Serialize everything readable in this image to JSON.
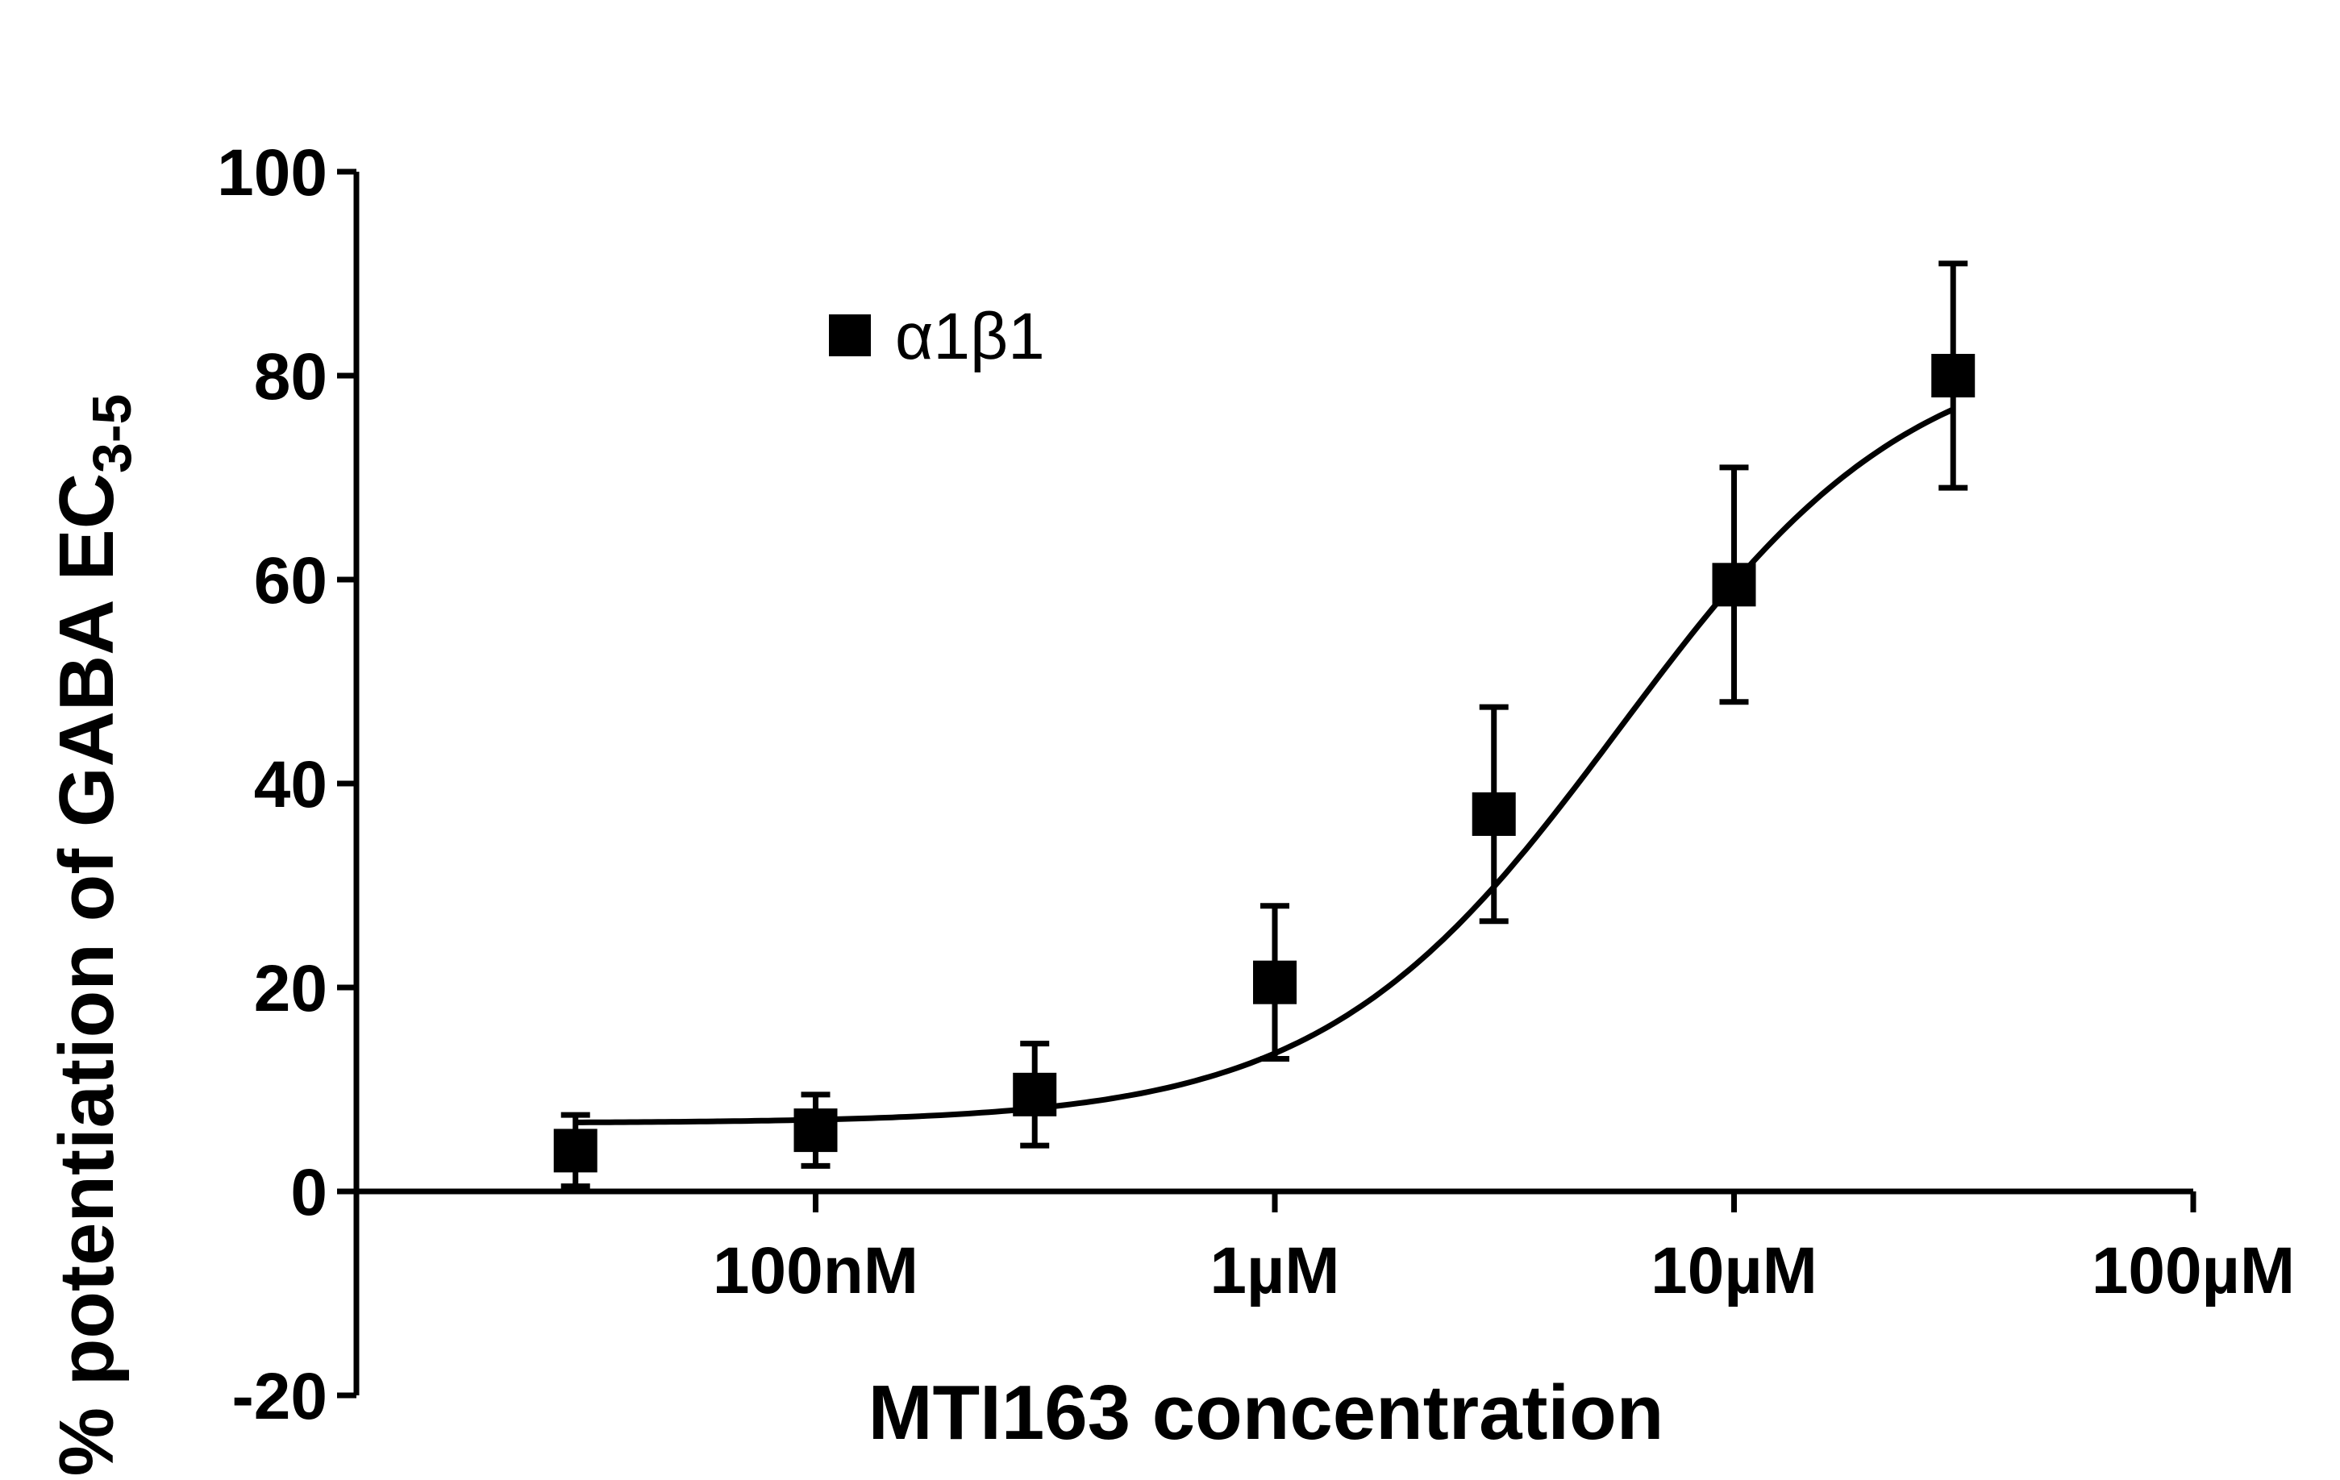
{
  "chart_data": {
    "type": "scatter",
    "title": "",
    "xlabel": "MTI163 concentration",
    "ylabel": "% potentiation of GABA EC",
    "ylabel_subscript": "3-5",
    "x_scale": "log",
    "xlim_molar": [
      1e-08,
      0.0001
    ],
    "ylim": [
      -20,
      100
    ],
    "y_ticks": [
      -20,
      0,
      20,
      40,
      60,
      80,
      100
    ],
    "x_ticks": [
      {
        "value": 1e-07,
        "label": "100nM"
      },
      {
        "value": 1e-06,
        "label": "1µM"
      },
      {
        "value": 1e-05,
        "label": "10µM"
      },
      {
        "value": 0.0001,
        "label": "100µM"
      }
    ],
    "legend": {
      "position": "top-left",
      "entries": [
        "α1β1"
      ]
    },
    "series": [
      {
        "name": "α1β1",
        "marker": "square",
        "x": [
          3e-08,
          1e-07,
          3e-07,
          1e-06,
          3e-06,
          1e-05,
          3e-05
        ],
        "y": [
          4,
          6,
          9.5,
          20.5,
          37,
          59.5,
          80
        ],
        "error": [
          3.5,
          3.5,
          5,
          7.5,
          10.5,
          11.5,
          11
        ]
      }
    ],
    "fit": {
      "type": "sigmoidal dose-response",
      "bottom": 6.7,
      "top": 84,
      "log_ec50": -5.25,
      "hill": 1.35
    }
  }
}
